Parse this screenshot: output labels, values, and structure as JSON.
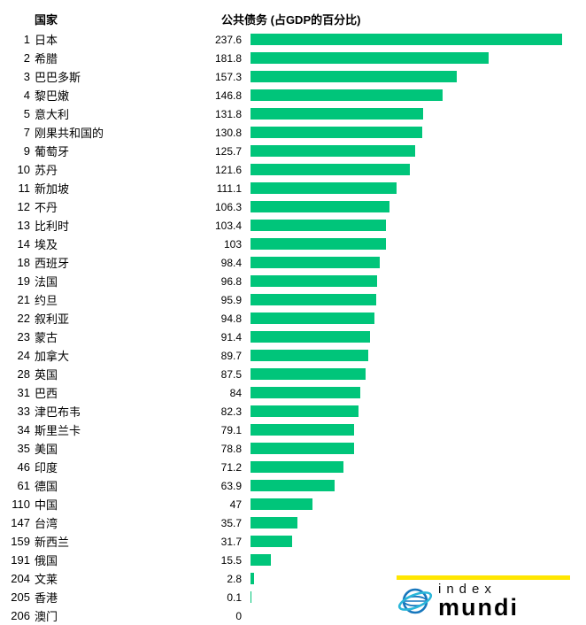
{
  "header": {
    "country_column_label": "国家",
    "value_column_label": "公共债务 (占GDP的百分比)"
  },
  "chart_data": {
    "type": "bar",
    "orientation": "horizontal",
    "title": "公共债务 (占GDP的百分比)",
    "xlabel": "公共债务 (占GDP的百分比)",
    "ylabel": "国家",
    "xlim": [
      0,
      240
    ],
    "grid": false,
    "legend": false,
    "bar_color": "#00c57a",
    "ranks": [
      1,
      2,
      3,
      4,
      5,
      7,
      9,
      10,
      11,
      12,
      13,
      14,
      18,
      19,
      21,
      22,
      23,
      24,
      28,
      31,
      33,
      34,
      35,
      46,
      61,
      110,
      147,
      159,
      191,
      204,
      205,
      206
    ],
    "categories": [
      "日本",
      "希腊",
      "巴巴多斯",
      "黎巴嫩",
      "意大利",
      "刚果共和国的",
      "葡萄牙",
      "苏丹",
      "新加坡",
      "不丹",
      "比利时",
      "埃及",
      "西班牙",
      "法国",
      "约旦",
      "叙利亚",
      "蒙古",
      "加拿大",
      "英国",
      "巴西",
      "津巴布韦",
      "斯里兰卡",
      "美国",
      "印度",
      "德国",
      "中国",
      "台湾",
      "新西兰",
      "俄国",
      "文莱",
      "香港",
      "澳门"
    ],
    "values": [
      237.6,
      181.8,
      157.3,
      146.8,
      131.8,
      130.8,
      125.7,
      121.6,
      111.1,
      106.3,
      103.4,
      103,
      98.4,
      96.8,
      95.9,
      94.8,
      91.4,
      89.7,
      87.5,
      84,
      82.3,
      79.1,
      78.8,
      71.2,
      63.9,
      47,
      35.7,
      31.7,
      15.5,
      2.8,
      0.1,
      0
    ]
  },
  "colors": {
    "bar_green": "#00c57a",
    "logo_yellow": "#ffe600",
    "logo_blue": "#1777bd",
    "logo_cyan": "#2ab6d9"
  },
  "logo": {
    "index_label": "index",
    "mundi_label": "mundi"
  }
}
